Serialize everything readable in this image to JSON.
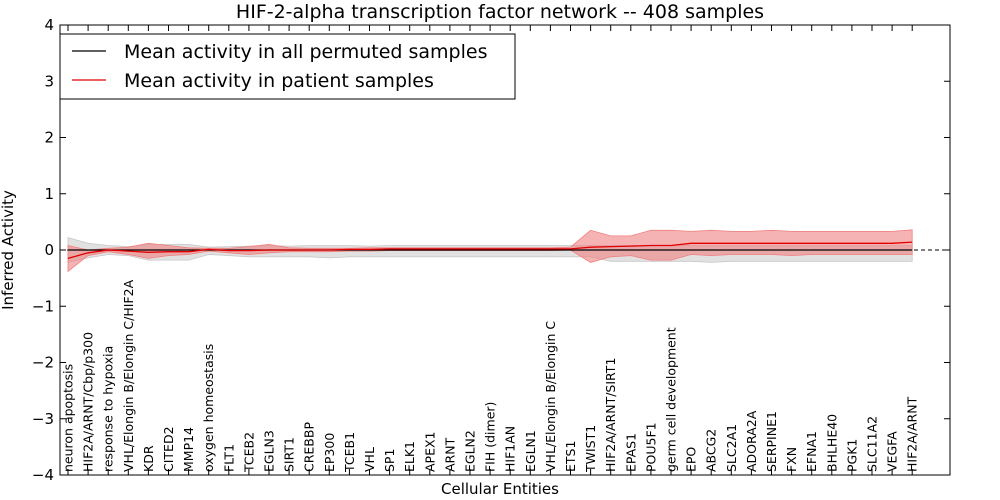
{
  "chart_data": {
    "type": "line",
    "title": "HIF-2-alpha transcription factor network -- 408 samples",
    "xlabel": "Cellular Entities",
    "ylabel": "Inferred Activity",
    "ylim": [
      -4,
      4
    ],
    "yticks": [
      "−4",
      "−3",
      "−2",
      "−1",
      "0",
      "1",
      "2",
      "3",
      "4"
    ],
    "legend_position": "top-left",
    "categories": [
      "neuron apoptosis",
      "HIF2A/ARNT/Cbp/p300",
      "response to hypoxia",
      "VHL/Elongin B/Elongin C/HIF2A",
      "KDR",
      "CITED2",
      "MMP14",
      "oxygen homeostasis",
      "FLT1",
      "TCEB2",
      "EGLN3",
      "SIRT1",
      "CREBBP",
      "EP300",
      "TCEB1",
      "VHL",
      "SP1",
      "ELK1",
      "APEX1",
      "ARNT",
      "EGLN2",
      "FIH (dimer)",
      "HIF1AN",
      "EGLN1",
      "VHL/Elongin B/Elongin C",
      "ETS1",
      "TWIST1",
      "HIF2A/ARNT/SIRT1",
      "EPAS1",
      "POU5F1",
      "germ cell development",
      "EPO",
      "ABCG2",
      "SLC2A1",
      "ADORA2A",
      "SERPINE1",
      "FXN",
      "EFNA1",
      "BHLHE40",
      "PGK1",
      "SLC11A2",
      "VEGFA",
      "HIF2A/ARNT"
    ],
    "series": [
      {
        "name": "Mean activity in all permuted samples",
        "color": "#000000",
        "band_color": "#c8c8c8",
        "values": [
          0.0,
          0.0,
          0.0,
          0.0,
          0.0,
          0.0,
          0.0,
          0.0,
          0.0,
          0.0,
          0.0,
          0.0,
          0.0,
          0.0,
          0.0,
          0.0,
          0.0,
          0.0,
          0.0,
          0.0,
          0.0,
          0.0,
          0.0,
          0.0,
          0.0,
          0.0,
          0.0,
          0.0,
          0.0,
          0.0,
          0.0,
          0.0,
          0.0,
          0.0,
          0.0,
          0.0,
          0.0,
          0.0,
          0.0,
          0.0,
          0.0,
          0.0,
          0.0
        ],
        "upper": [
          0.22,
          0.12,
          0.08,
          0.06,
          0.1,
          0.1,
          0.1,
          0.05,
          0.06,
          0.07,
          0.08,
          0.07,
          0.08,
          0.08,
          0.08,
          0.07,
          0.08,
          0.08,
          0.08,
          0.08,
          0.08,
          0.08,
          0.08,
          0.08,
          0.08,
          0.08,
          0.08,
          0.08,
          0.08,
          0.08,
          0.08,
          0.08,
          0.08,
          0.08,
          0.08,
          0.08,
          0.08,
          0.08,
          0.08,
          0.08,
          0.08,
          0.08,
          0.08
        ],
        "lower": [
          -0.22,
          -0.14,
          -0.08,
          -0.1,
          -0.18,
          -0.18,
          -0.18,
          -0.08,
          -0.1,
          -0.12,
          -0.12,
          -0.12,
          -0.12,
          -0.14,
          -0.12,
          -0.12,
          -0.12,
          -0.12,
          -0.12,
          -0.12,
          -0.12,
          -0.12,
          -0.12,
          -0.12,
          -0.12,
          -0.12,
          -0.12,
          -0.2,
          -0.2,
          -0.2,
          -0.2,
          -0.2,
          -0.22,
          -0.2,
          -0.2,
          -0.2,
          -0.2,
          -0.2,
          -0.2,
          -0.2,
          -0.2,
          -0.2,
          -0.2
        ]
      },
      {
        "name": "Mean activity in patient samples",
        "color": "#e00000",
        "band_color": "#f08080",
        "values": [
          -0.15,
          -0.05,
          0.0,
          -0.02,
          -0.04,
          -0.03,
          -0.03,
          0.01,
          -0.01,
          -0.01,
          0.0,
          0.0,
          0.0,
          0.0,
          0.01,
          0.01,
          0.02,
          0.02,
          0.02,
          0.02,
          0.02,
          0.02,
          0.02,
          0.02,
          0.02,
          0.02,
          0.05,
          0.06,
          0.07,
          0.08,
          0.08,
          0.12,
          0.12,
          0.12,
          0.12,
          0.12,
          0.12,
          0.12,
          0.12,
          0.12,
          0.12,
          0.12,
          0.14
        ],
        "upper": [
          0.08,
          -0.0,
          0.03,
          0.05,
          0.12,
          0.08,
          0.04,
          0.03,
          0.03,
          0.06,
          0.1,
          0.04,
          0.03,
          0.03,
          0.03,
          0.04,
          0.04,
          0.04,
          0.04,
          0.04,
          0.04,
          0.04,
          0.04,
          0.04,
          0.04,
          0.05,
          0.35,
          0.25,
          0.25,
          0.35,
          0.35,
          0.33,
          0.35,
          0.33,
          0.33,
          0.35,
          0.33,
          0.33,
          0.33,
          0.33,
          0.33,
          0.33,
          0.36
        ],
        "lower": [
          -0.38,
          -0.1,
          -0.03,
          -0.08,
          -0.15,
          -0.1,
          -0.08,
          -0.02,
          -0.05,
          -0.08,
          -0.05,
          -0.03,
          -0.03,
          -0.03,
          -0.02,
          -0.02,
          -0.01,
          -0.01,
          -0.01,
          -0.01,
          -0.01,
          -0.01,
          -0.01,
          -0.01,
          -0.01,
          0.0,
          -0.22,
          -0.12,
          -0.1,
          -0.18,
          -0.18,
          -0.08,
          -0.1,
          -0.08,
          -0.08,
          -0.08,
          -0.1,
          -0.08,
          -0.08,
          -0.08,
          -0.08,
          -0.08,
          -0.08
        ]
      }
    ]
  }
}
